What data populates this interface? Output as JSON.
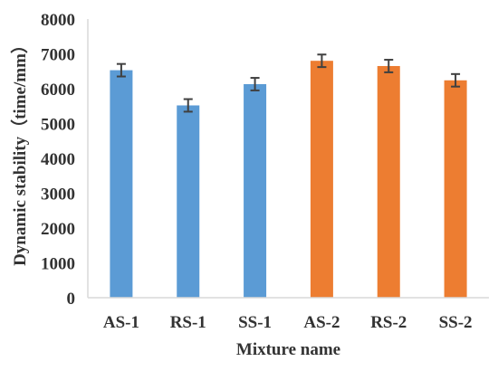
{
  "chart_data": {
    "type": "bar",
    "title": "",
    "xlabel": "Mixture name",
    "ylabel": "Dynamic stability（time/mm）",
    "ylim": [
      0,
      8000
    ],
    "yticks": [
      0,
      1000,
      2000,
      3000,
      4000,
      5000,
      6000,
      7000,
      8000
    ],
    "grid": false,
    "legend": "none",
    "categories": [
      "AS-1",
      "RS-1",
      "SS-1",
      "AS-2",
      "RS-2",
      "SS-2"
    ],
    "values": [
      6530,
      5520,
      6130,
      6800,
      6650,
      6240
    ],
    "error": [
      180,
      180,
      180,
      180,
      180,
      180
    ],
    "bar_colors": [
      "#5b9bd5",
      "#5b9bd5",
      "#5b9bd5",
      "#ed7d31",
      "#ed7d31",
      "#ed7d31"
    ],
    "error_color": "#404040",
    "axis_color": "#d9d9d9"
  }
}
